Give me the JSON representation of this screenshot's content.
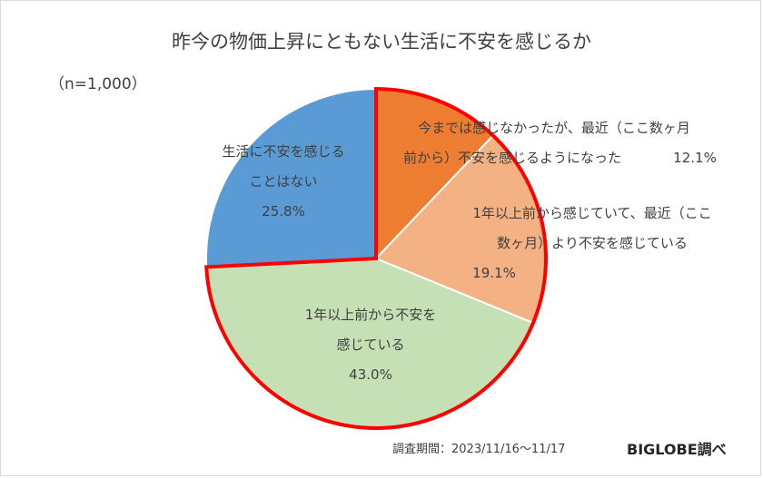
{
  "chart_data": {
    "type": "pie",
    "title": "昨今の物価上昇にともない生活に不安を感じるか",
    "subtitle": "（n=1,000）",
    "slices": [
      {
        "label_lines": [
          "今までは感じなかったが、最近（ここ数ヶ月",
          "前から）不安を感じるようになった"
        ],
        "value": 12.1,
        "value_text": "12.1%",
        "color": "#ed7d31"
      },
      {
        "label_lines": [
          "1年以上前から感じていて、最近（ここ",
          "数ヶ月）より不安を感じている"
        ],
        "value": 19.1,
        "value_text": "19.1%",
        "color": "#f4b183"
      },
      {
        "label_lines": [
          "1年以上前から不安を",
          "感じている"
        ],
        "value": 43.0,
        "value_text": "43.0%",
        "color": "#c5e0b4"
      },
      {
        "label_lines": [
          "生活に不安を感じる",
          "ことはない"
        ],
        "value": 25.8,
        "value_text": "25.8%",
        "color": "#5b9bd5"
      }
    ],
    "highlight_color": "#ff0000",
    "start_angle_deg": 0,
    "direction": "clockwise"
  },
  "footer": {
    "survey_period": "調査期間：2023/11/16〜11/17",
    "brand": "BIGLOBE調べ"
  }
}
